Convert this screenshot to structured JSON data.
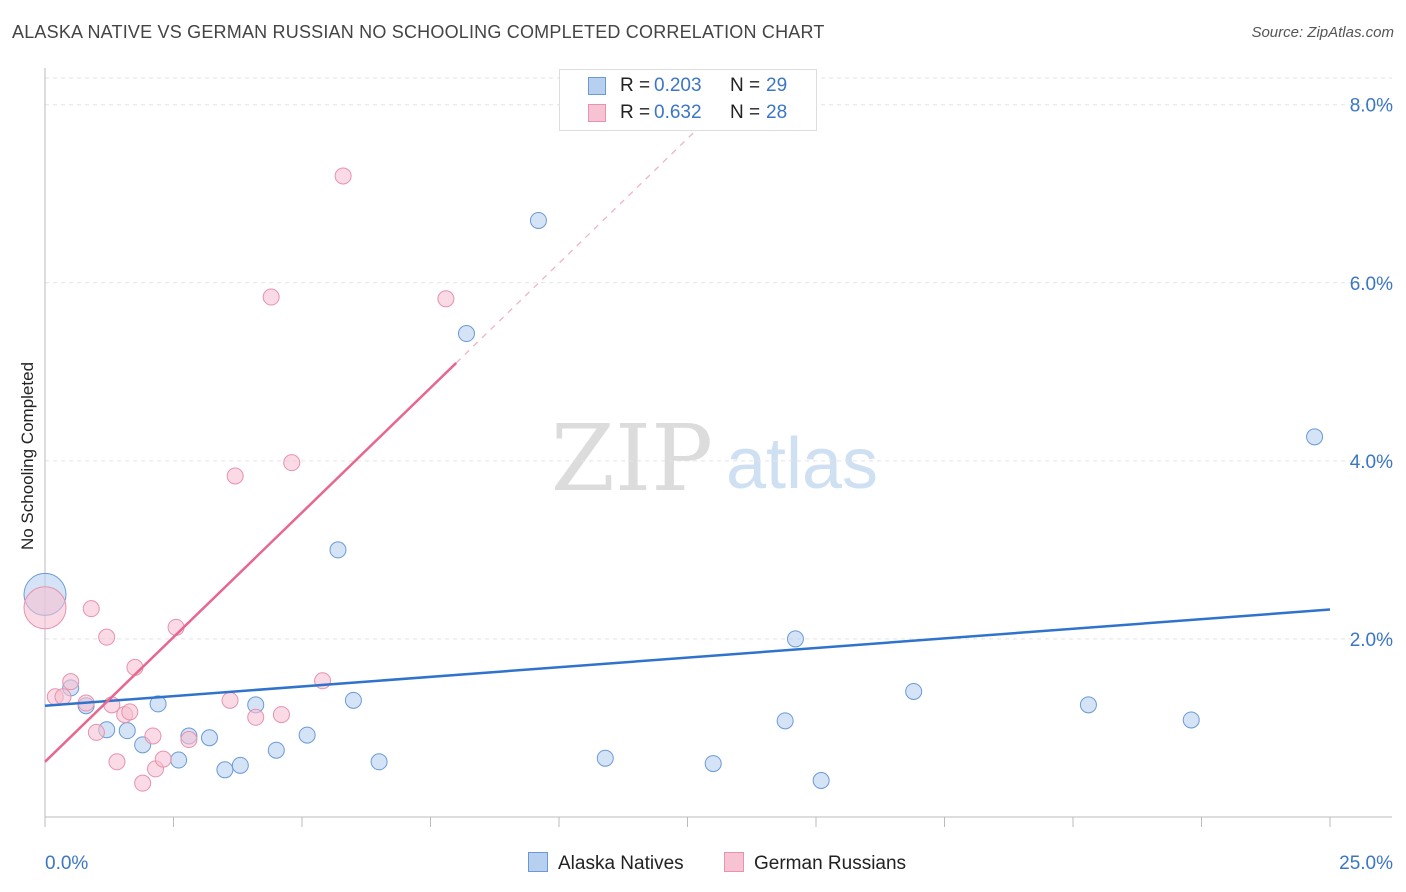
{
  "header": {
    "title": "ALASKA NATIVE VS GERMAN RUSSIAN NO SCHOOLING COMPLETED CORRELATION CHART",
    "source": "Source: ZipAtlas.com"
  },
  "legend": {
    "rows": [
      {
        "r_label": "R =",
        "r_value": "0.203",
        "n_label": "N =",
        "n_value": "29"
      },
      {
        "r_label": "R =",
        "r_value": "0.632",
        "n_label": "N =",
        "n_value": "28"
      }
    ]
  },
  "bottom_legend": {
    "items": [
      {
        "label": "Alaska Natives"
      },
      {
        "label": "German Russians"
      }
    ]
  },
  "watermark": {
    "part1": "ZIP",
    "part2": "atlas"
  },
  "colors": {
    "blue_fill": "#b7d0f0",
    "blue_stroke": "#6a9ad6",
    "blue_line": "#2f73cc",
    "pink_fill": "#f7c2d2",
    "pink_stroke": "#e792ae",
    "pink_line": "#e7678f",
    "axis_text": "#3b76c4",
    "grid": "#e3e3e3"
  },
  "chart_data": {
    "type": "scatter",
    "title": "ALASKA NATIVE VS GERMAN RUSSIAN NO SCHOOLING COMPLETED CORRELATION CHART",
    "xlabel": "",
    "ylabel": "No Schooling Completed",
    "xlim": [
      0,
      25
    ],
    "ylim": [
      0,
      8.3
    ],
    "x_tick_labels": [
      "0.0%",
      "25.0%"
    ],
    "y_ticks": [
      2,
      4,
      6,
      8
    ],
    "y_tick_labels": [
      "2.0%",
      "4.0%",
      "6.0%",
      "8.0%"
    ],
    "grid": true,
    "legend_position": "top-center",
    "series": [
      {
        "name": "Alaska Natives",
        "r": 0.203,
        "n": 29,
        "trend": {
          "x0": 0,
          "y0": 1.25,
          "x1": 25,
          "y1": 2.33
        },
        "points": [
          {
            "x": 0.0,
            "y": 2.5,
            "big": true
          },
          {
            "x": 0.5,
            "y": 1.45
          },
          {
            "x": 0.8,
            "y": 1.25
          },
          {
            "x": 1.2,
            "y": 0.98
          },
          {
            "x": 1.6,
            "y": 0.97
          },
          {
            "x": 1.9,
            "y": 0.81
          },
          {
            "x": 2.2,
            "y": 1.27
          },
          {
            "x": 2.6,
            "y": 0.64
          },
          {
            "x": 2.8,
            "y": 0.91
          },
          {
            "x": 3.2,
            "y": 0.89
          },
          {
            "x": 3.5,
            "y": 0.53
          },
          {
            "x": 3.8,
            "y": 0.58
          },
          {
            "x": 4.1,
            "y": 1.26
          },
          {
            "x": 4.5,
            "y": 0.75
          },
          {
            "x": 5.1,
            "y": 0.92
          },
          {
            "x": 5.7,
            "y": 3.0
          },
          {
            "x": 6.0,
            "y": 1.31
          },
          {
            "x": 6.5,
            "y": 0.62
          },
          {
            "x": 8.2,
            "y": 5.43
          },
          {
            "x": 9.6,
            "y": 6.7
          },
          {
            "x": 10.9,
            "y": 0.66
          },
          {
            "x": 13.0,
            "y": 0.6
          },
          {
            "x": 14.4,
            "y": 1.08
          },
          {
            "x": 14.6,
            "y": 2.0
          },
          {
            "x": 15.1,
            "y": 0.41
          },
          {
            "x": 16.9,
            "y": 1.41
          },
          {
            "x": 20.3,
            "y": 1.26
          },
          {
            "x": 22.3,
            "y": 1.09
          },
          {
            "x": 24.7,
            "y": 4.27
          }
        ]
      },
      {
        "name": "German Russians",
        "r": 0.632,
        "n": 28,
        "trend": {
          "x0": 0,
          "y0": 0.62,
          "x1": 8.0,
          "y1": 5.1
        },
        "trend_ext": {
          "x0": 8.0,
          "y0": 5.1,
          "x1": 13.0,
          "y1": 7.9
        },
        "points": [
          {
            "x": 0.0,
            "y": 2.35,
            "big": true
          },
          {
            "x": 0.2,
            "y": 1.35
          },
          {
            "x": 0.35,
            "y": 1.35
          },
          {
            "x": 0.5,
            "y": 1.52
          },
          {
            "x": 0.8,
            "y": 1.28
          },
          {
            "x": 0.9,
            "y": 2.34
          },
          {
            "x": 1.0,
            "y": 0.95
          },
          {
            "x": 1.2,
            "y": 2.02
          },
          {
            "x": 1.3,
            "y": 1.26
          },
          {
            "x": 1.4,
            "y": 0.62
          },
          {
            "x": 1.55,
            "y": 1.15
          },
          {
            "x": 1.65,
            "y": 1.18
          },
          {
            "x": 1.75,
            "y": 1.68
          },
          {
            "x": 1.9,
            "y": 0.38
          },
          {
            "x": 2.1,
            "y": 0.91
          },
          {
            "x": 2.15,
            "y": 0.54
          },
          {
            "x": 2.3,
            "y": 0.65
          },
          {
            "x": 2.55,
            "y": 2.13
          },
          {
            "x": 2.8,
            "y": 0.87
          },
          {
            "x": 3.6,
            "y": 1.31
          },
          {
            "x": 3.7,
            "y": 3.83
          },
          {
            "x": 4.1,
            "y": 1.12
          },
          {
            "x": 4.4,
            "y": 5.84
          },
          {
            "x": 4.6,
            "y": 1.15
          },
          {
            "x": 4.8,
            "y": 3.98
          },
          {
            "x": 5.4,
            "y": 1.53
          },
          {
            "x": 5.8,
            "y": 7.2
          },
          {
            "x": 7.8,
            "y": 5.82
          }
        ]
      }
    ]
  }
}
